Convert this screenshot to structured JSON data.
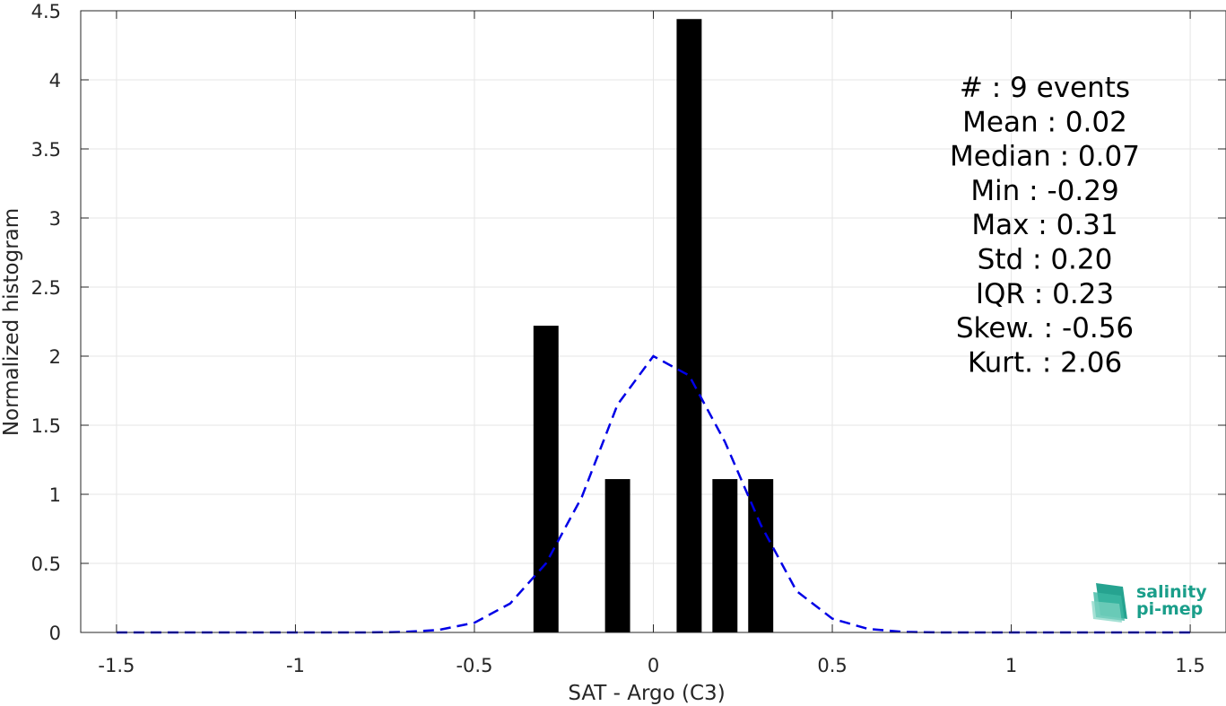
{
  "chart_data": {
    "type": "bar",
    "title": "",
    "xlabel": "SAT - Argo (C3)",
    "ylabel": "Normalized histogram",
    "xlim": [
      -1.6,
      1.6
    ],
    "ylim": [
      0,
      4.5
    ],
    "xticks": [
      -1.5,
      -1,
      -0.5,
      0,
      0.5,
      1,
      1.5
    ],
    "xtick_labels": [
      "-1.5",
      "-1",
      "-0.5",
      "0",
      "0.5",
      "1",
      "1.5"
    ],
    "yticks": [
      0,
      0.5,
      1,
      1.5,
      2,
      2.5,
      3,
      3.5,
      4,
      4.5
    ],
    "ytick_labels": [
      "0",
      "0.5",
      "1",
      "1.5",
      "2",
      "2.5",
      "3",
      "3.5",
      "4",
      "4.5"
    ],
    "grid": true,
    "bar_width": 0.07,
    "bar_color": "#000000",
    "bars": [
      {
        "x": -0.3,
        "value": 2.22
      },
      {
        "x": -0.1,
        "value": 1.11
      },
      {
        "x": 0.1,
        "value": 4.44
      },
      {
        "x": 0.2,
        "value": 1.11
      },
      {
        "x": 0.3,
        "value": 1.11
      }
    ],
    "fit_curve": {
      "style": "dashed",
      "color": "#0000e6",
      "x": [
        -1.5,
        -1.4,
        -1.3,
        -1.2,
        -1.1,
        -1.0,
        -0.9,
        -0.8,
        -0.7,
        -0.6,
        -0.5,
        -0.4,
        -0.3,
        -0.2,
        -0.1,
        0.0,
        0.1,
        0.2,
        0.3,
        0.4,
        0.5,
        0.6,
        0.7,
        0.8,
        0.9,
        1.0,
        1.1,
        1.2,
        1.3,
        1.4,
        1.5
      ],
      "y": [
        0,
        0,
        0,
        0,
        0,
        0,
        0,
        0,
        0.003,
        0.018,
        0.07,
        0.21,
        0.5,
        0.98,
        1.65,
        2.0,
        1.86,
        1.38,
        0.78,
        0.3,
        0.1,
        0.025,
        0.004,
        0,
        0,
        0,
        0,
        0,
        0,
        0,
        0
      ]
    },
    "stats": [
      "#  : 9 events",
      "Mean : 0.02",
      "Median : 0.07",
      "Min : -0.29",
      "Max : 0.31",
      "Std : 0.20",
      "IQR : 0.23",
      "Skew. : -0.56",
      "Kurt. : 2.06"
    ],
    "stats_placement": "top-right"
  },
  "logo": {
    "line1": "salinity",
    "line2": "pi-mep",
    "color": "#1a9e8a"
  }
}
